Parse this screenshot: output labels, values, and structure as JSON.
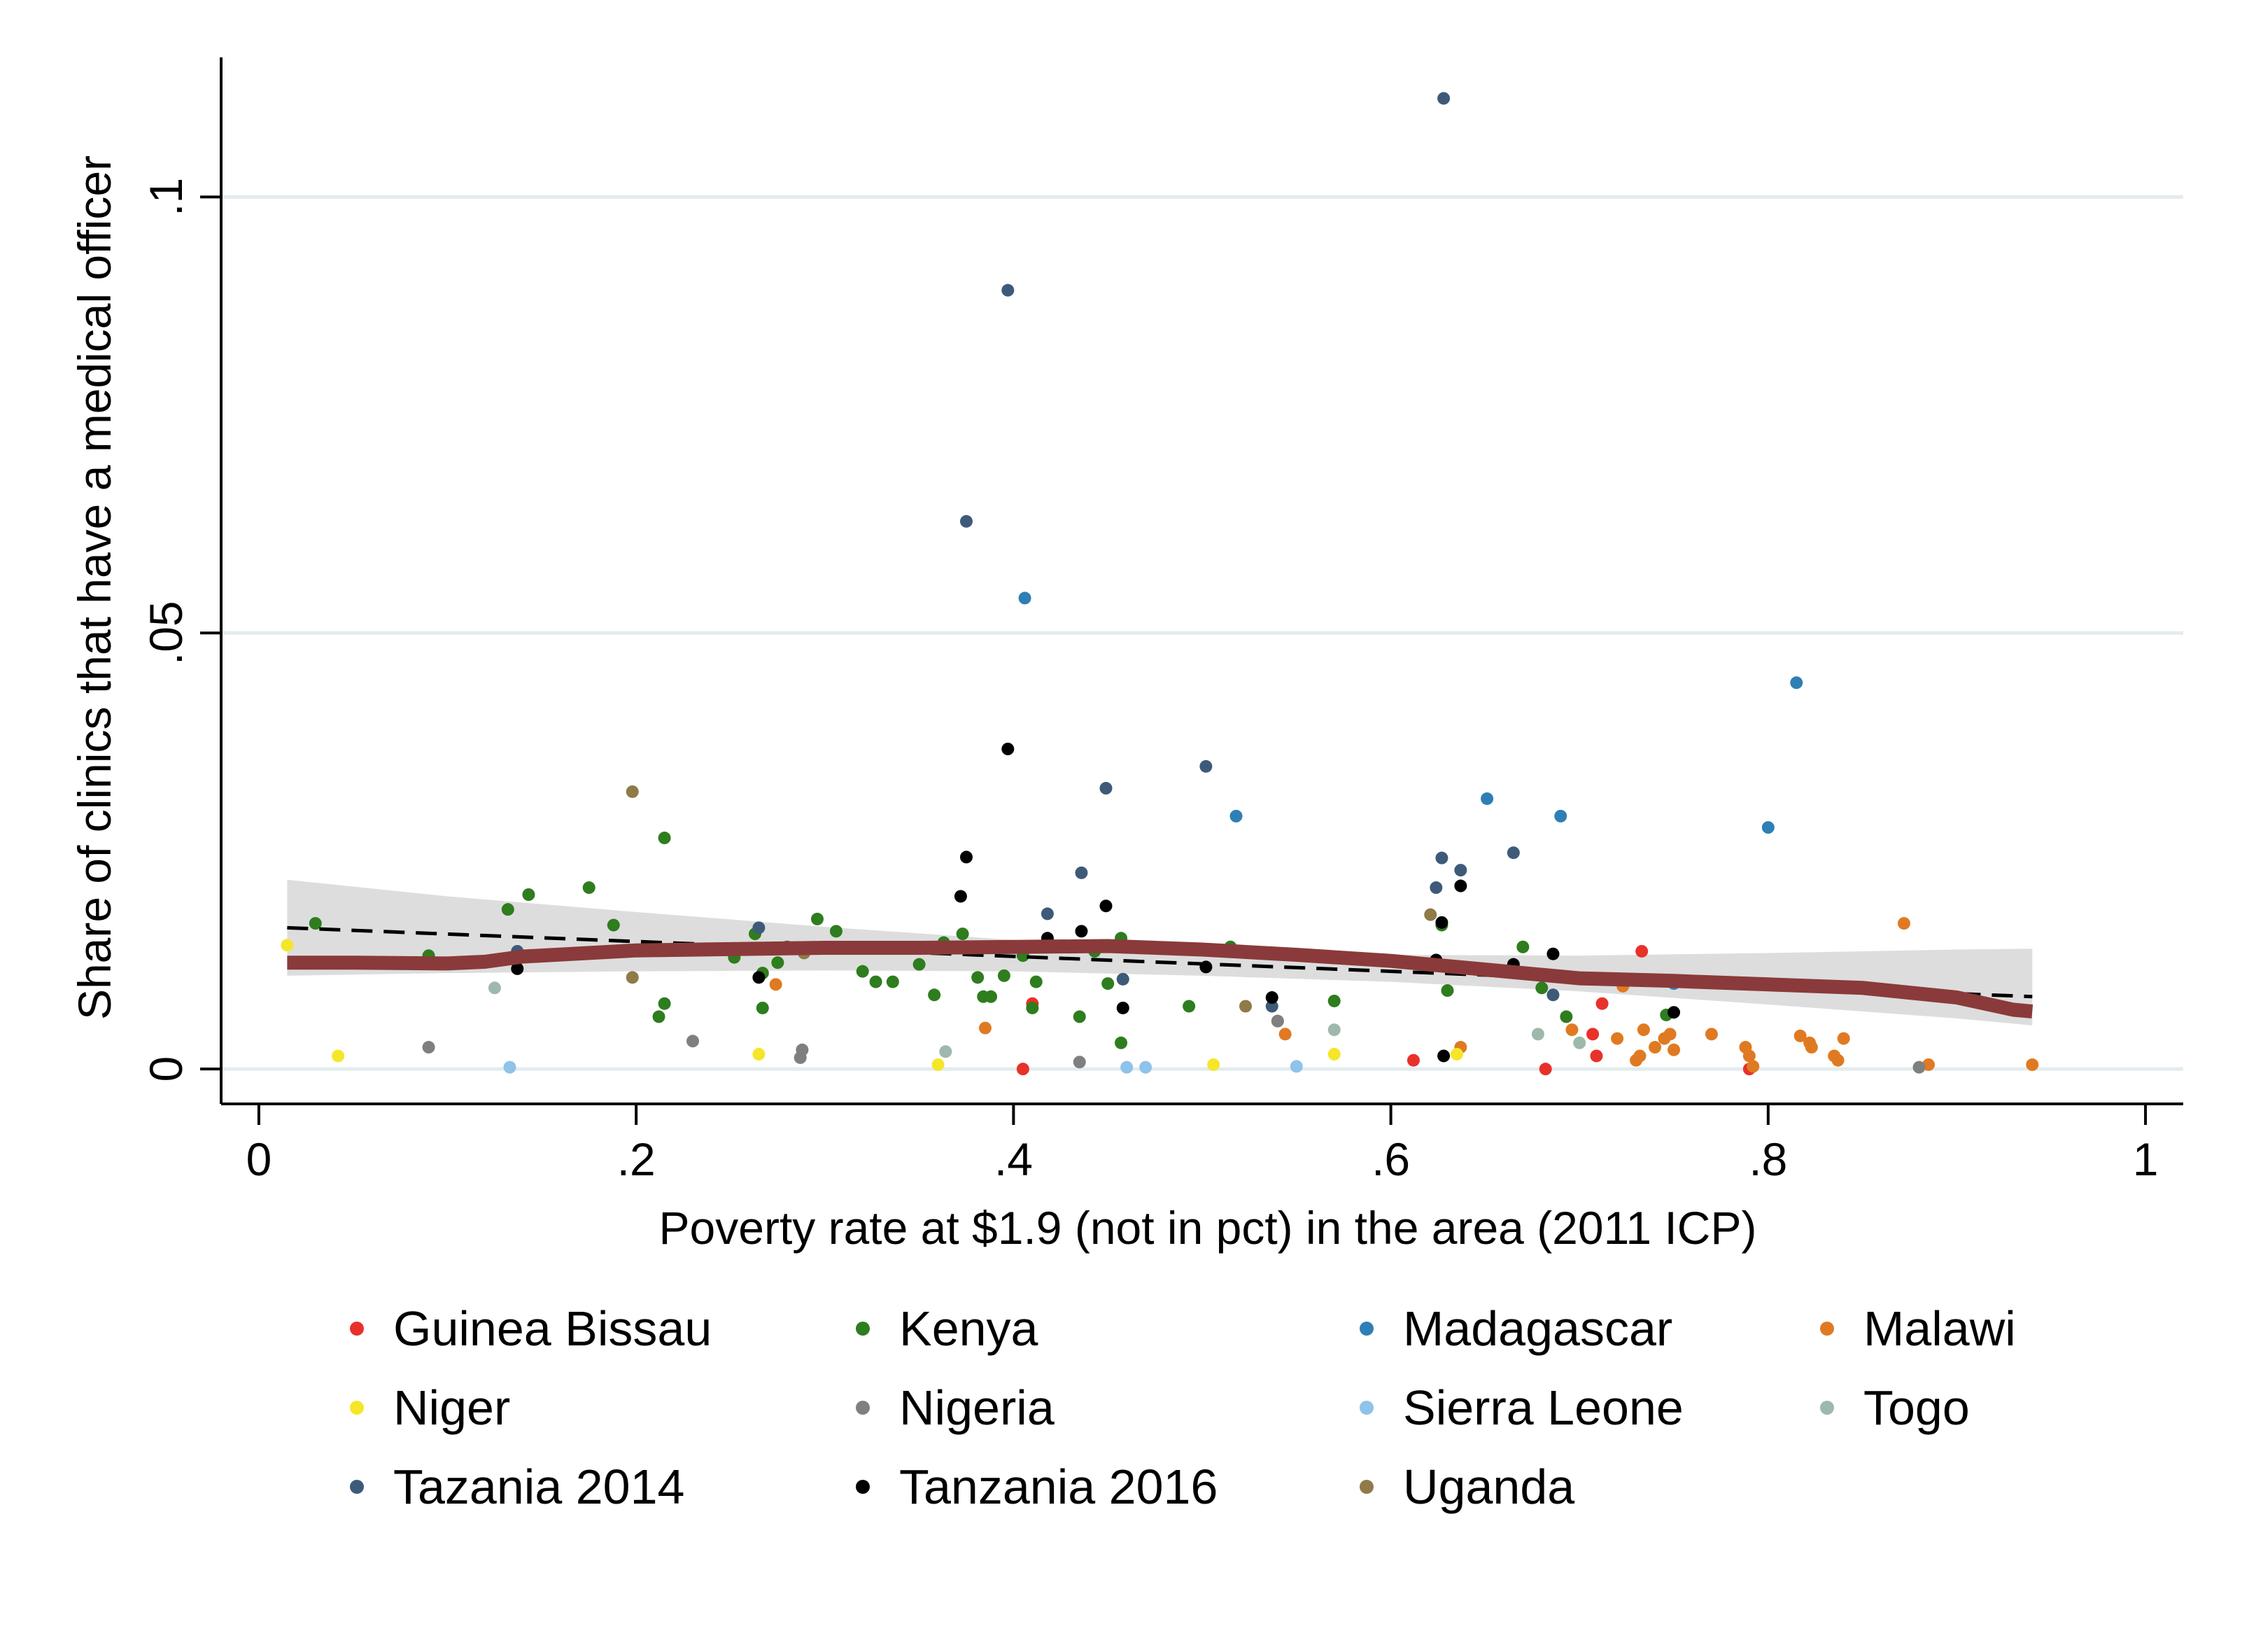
{
  "chart_data": {
    "type": "scatter",
    "title": "",
    "xlabel": "Poverty rate at $1.9 (not in pct) in the area (2011 ICP)",
    "ylabel": "Share of clinics that have a medical officer",
    "xlim": [
      -0.02,
      1.02
    ],
    "ylim": [
      -0.004,
      0.116
    ],
    "x_ticks": [
      {
        "v": 0,
        "label": "0"
      },
      {
        "v": 0.2,
        "label": ".2"
      },
      {
        "v": 0.4,
        "label": ".4"
      },
      {
        "v": 0.6,
        "label": ".6"
      },
      {
        "v": 0.8,
        "label": ".8"
      },
      {
        "v": 1,
        "label": "1"
      }
    ],
    "y_ticks": [
      {
        "v": 0,
        "label": "0"
      },
      {
        "v": 0.05,
        "label": ".05"
      },
      {
        "v": 0.1,
        "label": ".1"
      }
    ],
    "grid": "horizontal",
    "legend_position": "bottom",
    "series": [
      {
        "name": "Guinea Bissau",
        "color": "#e8312a",
        "points": [
          [
            0.41,
            0.0075
          ],
          [
            0.405,
            0
          ],
          [
            0.612,
            0.001
          ],
          [
            0.682,
            0
          ],
          [
            0.707,
            0.004
          ],
          [
            0.709,
            0.0015
          ],
          [
            0.712,
            0.0075
          ],
          [
            0.733,
            0.0135
          ],
          [
            0.79,
            0
          ]
        ]
      },
      {
        "name": "Kenya",
        "color": "#2e7d1e",
        "points": [
          [
            0.03,
            0.0167
          ],
          [
            0.09,
            0.013
          ],
          [
            0.132,
            0.0183
          ],
          [
            0.143,
            0.02
          ],
          [
            0.175,
            0.0208
          ],
          [
            0.188,
            0.0165
          ],
          [
            0.212,
            0.006
          ],
          [
            0.215,
            0.0265
          ],
          [
            0.215,
            0.0075
          ],
          [
            0.252,
            0.0128
          ],
          [
            0.263,
            0.0155
          ],
          [
            0.267,
            0.011
          ],
          [
            0.267,
            0.007
          ],
          [
            0.275,
            0.0122
          ],
          [
            0.28,
            0.014
          ],
          [
            0.296,
            0.0172
          ],
          [
            0.306,
            0.0158
          ],
          [
            0.32,
            0.0112
          ],
          [
            0.327,
            0.01
          ],
          [
            0.336,
            0.01
          ],
          [
            0.35,
            0.012
          ],
          [
            0.358,
            0.0085
          ],
          [
            0.363,
            0.0145
          ],
          [
            0.373,
            0.0155
          ],
          [
            0.381,
            0.0105
          ],
          [
            0.384,
            0.0083
          ],
          [
            0.388,
            0.0083
          ],
          [
            0.395,
            0.0107
          ],
          [
            0.405,
            0.013
          ],
          [
            0.41,
            0.007
          ],
          [
            0.412,
            0.01
          ],
          [
            0.435,
            0.006
          ],
          [
            0.443,
            0.0135
          ],
          [
            0.45,
            0.0098
          ],
          [
            0.457,
            0.015
          ],
          [
            0.457,
            0.003
          ],
          [
            0.493,
            0.0072
          ],
          [
            0.515,
            0.014
          ],
          [
            0.57,
            0.0078
          ],
          [
            0.627,
            0.0165
          ],
          [
            0.63,
            0.009
          ],
          [
            0.67,
            0.014
          ],
          [
            0.68,
            0.0093
          ],
          [
            0.693,
            0.006
          ],
          [
            0.746,
            0.0062
          ]
        ]
      },
      {
        "name": "Madagascar",
        "color": "#2e7fb5",
        "points": [
          [
            0.406,
            0.054
          ],
          [
            0.518,
            0.029
          ],
          [
            0.651,
            0.031
          ],
          [
            0.69,
            0.029
          ],
          [
            0.75,
            0.0098
          ],
          [
            0.8,
            0.0277
          ],
          [
            0.815,
            0.0443
          ]
        ]
      },
      {
        "name": "Malawi",
        "color": "#e07a22",
        "points": [
          [
            0.274,
            0.0097
          ],
          [
            0.385,
            0.0047
          ],
          [
            0.54,
            0.0055
          ],
          [
            0.544,
            0.004
          ],
          [
            0.637,
            0.0025
          ],
          [
            0.696,
            0.0045
          ],
          [
            0.72,
            0.0035
          ],
          [
            0.723,
            0.0095
          ],
          [
            0.73,
            0.001
          ],
          [
            0.732,
            0.0015
          ],
          [
            0.734,
            0.0045
          ],
          [
            0.74,
            0.0025
          ],
          [
            0.745,
            0.0035
          ],
          [
            0.748,
            0.004
          ],
          [
            0.75,
            0.0022
          ],
          [
            0.77,
            0.004
          ],
          [
            0.788,
            0.0025
          ],
          [
            0.79,
            0.0015
          ],
          [
            0.792,
            0.0003
          ],
          [
            0.817,
            0.0038
          ],
          [
            0.822,
            0.003
          ],
          [
            0.823,
            0.0025
          ],
          [
            0.835,
            0.0015
          ],
          [
            0.837,
            0.001
          ],
          [
            0.84,
            0.0035
          ],
          [
            0.872,
            0.0167
          ],
          [
            0.885,
            0.0005
          ],
          [
            0.94,
            0.0005
          ]
        ]
      },
      {
        "name": "Niger",
        "color": "#f5e62a",
        "points": [
          [
            0.015,
            0.0142
          ],
          [
            0.042,
            0.0015
          ],
          [
            0.265,
            0.0017
          ],
          [
            0.36,
            0.0005
          ],
          [
            0.506,
            0.0005
          ],
          [
            0.57,
            0.0017
          ],
          [
            0.635,
            0.0017
          ]
        ]
      },
      {
        "name": "Nigeria",
        "color": "#7f7f7f",
        "points": [
          [
            0.09,
            0.0025
          ],
          [
            0.23,
            0.0032
          ],
          [
            0.287,
            0.0013
          ],
          [
            0.288,
            0.0022
          ],
          [
            0.435,
            0.0008
          ],
          [
            0.54,
            0.0055
          ],
          [
            0.88,
            0.0002
          ]
        ]
      },
      {
        "name": "Sierra Leone",
        "color": "#8ec3ea",
        "points": [
          [
            0.133,
            0.0002
          ],
          [
            0.46,
            0.0002
          ],
          [
            0.47,
            0.0002
          ],
          [
            0.55,
            0.0003
          ]
        ]
      },
      {
        "name": "Togo",
        "color": "#9fb8ac",
        "points": [
          [
            0.125,
            0.0093
          ],
          [
            0.364,
            0.002
          ],
          [
            0.57,
            0.0045
          ],
          [
            0.678,
            0.004
          ],
          [
            0.7,
            0.003
          ]
        ]
      },
      {
        "name": "Tazania 2014",
        "color": "#3e5a79",
        "points": [
          [
            0.137,
            0.0135
          ],
          [
            0.265,
            0.0162
          ],
          [
            0.375,
            0.0628
          ],
          [
            0.397,
            0.0893
          ],
          [
            0.418,
            0.0178
          ],
          [
            0.436,
            0.0225
          ],
          [
            0.449,
            0.0322
          ],
          [
            0.458,
            0.0103
          ],
          [
            0.502,
            0.0347
          ],
          [
            0.537,
            0.0072
          ],
          [
            0.624,
            0.0208
          ],
          [
            0.627,
            0.0242
          ],
          [
            0.628,
            0.1113
          ],
          [
            0.637,
            0.0228
          ],
          [
            0.665,
            0.0248
          ],
          [
            0.686,
            0.0085
          ]
        ]
      },
      {
        "name": "Tanzania 2016",
        "color": "#000000",
        "points": [
          [
            0.137,
            0.0115
          ],
          [
            0.265,
            0.0105
          ],
          [
            0.372,
            0.0198
          ],
          [
            0.375,
            0.0243
          ],
          [
            0.397,
            0.0367
          ],
          [
            0.418,
            0.015
          ],
          [
            0.436,
            0.0158
          ],
          [
            0.449,
            0.0187
          ],
          [
            0.458,
            0.007
          ],
          [
            0.502,
            0.0117
          ],
          [
            0.537,
            0.0082
          ],
          [
            0.624,
            0.0125
          ],
          [
            0.627,
            0.0168
          ],
          [
            0.628,
            0.0015
          ],
          [
            0.637,
            0.021
          ],
          [
            0.665,
            0.012
          ],
          [
            0.686,
            0.0132
          ],
          [
            0.75,
            0.0065
          ]
        ]
      },
      {
        "name": "Uganda",
        "color": "#8f7a48",
        "points": [
          [
            0.198,
            0.0318
          ],
          [
            0.198,
            0.0105
          ],
          [
            0.289,
            0.0133
          ],
          [
            0.523,
            0.0072
          ],
          [
            0.621,
            0.0177
          ]
        ]
      }
    ],
    "linear_fit": {
      "name": "",
      "style": "dashed",
      "color": "#000000",
      "x": [
        0.015,
        0.94
      ],
      "y": [
        0.0162,
        0.0083
      ]
    },
    "confidence_band": {
      "color": "#d9d9d9",
      "x": [
        0.015,
        0.1,
        0.2,
        0.3,
        0.4,
        0.5,
        0.6,
        0.7,
        0.8,
        0.9,
        0.94
      ],
      "upper": [
        0.0217,
        0.0198,
        0.018,
        0.0163,
        0.0148,
        0.0137,
        0.0131,
        0.013,
        0.0133,
        0.0137,
        0.0138
      ],
      "lower": [
        0.0107,
        0.011,
        0.0112,
        0.0113,
        0.0112,
        0.0107,
        0.01,
        0.0089,
        0.0074,
        0.0058,
        0.005
      ]
    },
    "smooth_curve": {
      "name": "",
      "color": "#8a3a3a",
      "x": [
        0.015,
        0.05,
        0.1,
        0.12,
        0.14,
        0.2,
        0.3,
        0.35,
        0.4,
        0.45,
        0.5,
        0.55,
        0.6,
        0.65,
        0.7,
        0.75,
        0.8,
        0.85,
        0.9,
        0.93,
        0.94
      ],
      "y": [
        0.0122,
        0.0122,
        0.0121,
        0.0123,
        0.0129,
        0.0136,
        0.0139,
        0.0139,
        0.014,
        0.0141,
        0.0137,
        0.0131,
        0.0124,
        0.0114,
        0.0104,
        0.0101,
        0.0097,
        0.0093,
        0.0082,
        0.0068,
        0.0066
      ]
    }
  }
}
